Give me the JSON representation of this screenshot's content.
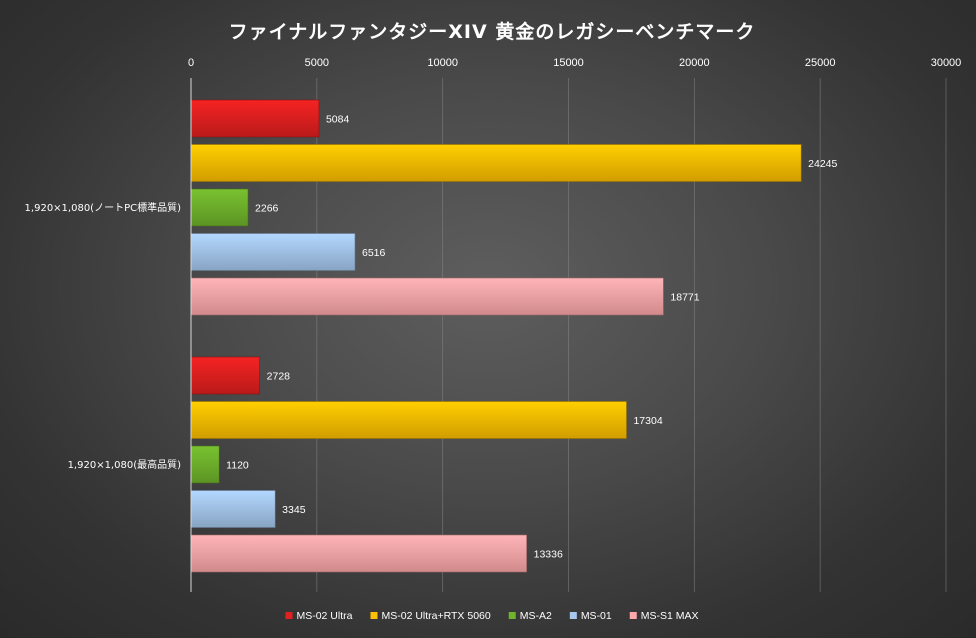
{
  "chart_data": {
    "type": "bar",
    "orientation": "horizontal",
    "title": "ファイナルファンタジーXIV 黄金のレガシーベンチマーク",
    "categories": [
      "1,920×1,080(ノートPC標準品質)",
      "1,920×1,080(最高品質)"
    ],
    "series": [
      {
        "name": "MS-02 Ultra",
        "color": "#e32020",
        "values": [
          5084,
          2728
        ]
      },
      {
        "name": "MS-02 Ultra+RTX 5060",
        "color": "#ffc000",
        "values": [
          24245,
          17304
        ]
      },
      {
        "name": "MS-A2",
        "color": "#70b42c",
        "values": [
          2266,
          1120
        ]
      },
      {
        "name": "MS-01",
        "color": "#a6c8ee",
        "values": [
          6516,
          3345
        ]
      },
      {
        "name": "MS-S1 MAX",
        "color": "#ffa8aa",
        "values": [
          18771,
          13336
        ]
      }
    ],
    "xlim": [
      0,
      30000
    ],
    "xticks": [
      0,
      5000,
      10000,
      15000,
      20000,
      25000,
      30000
    ],
    "xaxis_position": "top",
    "grid": true,
    "legend": "bottom"
  }
}
